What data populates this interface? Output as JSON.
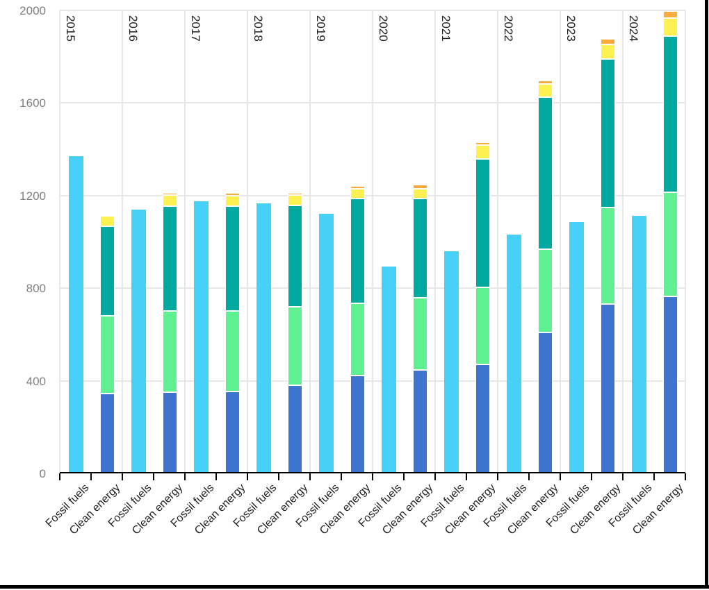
{
  "chart_data": {
    "type": "bar",
    "subtype": "grouped-and-stacked-column",
    "title": "",
    "years": [
      "2015",
      "2016",
      "2017",
      "2018",
      "2019",
      "2020",
      "2021",
      "2022",
      "2023",
      "2024"
    ],
    "group_bar_labels": [
      "Fossil fuels",
      "Clean energy"
    ],
    "y_axis": {
      "min": 0,
      "max": 2000,
      "tick_values": [
        0,
        400,
        800,
        1200,
        1600,
        2000
      ],
      "tick_labels": [
        "0",
        "400",
        "800",
        "1200",
        "1600",
        "2000"
      ]
    },
    "series": [
      {
        "name": "fossil-fuels-total",
        "bar": "Fossil fuels",
        "stack": false,
        "color": "#47D1F9",
        "values": [
          1370,
          1138,
          1175,
          1166,
          1122,
          895,
          961,
          1031,
          1086,
          1113
        ]
      },
      {
        "name": "clean-energy-segment-blue",
        "bar": "Clean energy",
        "stack": true,
        "color": "#3D74D0",
        "values": [
          345,
          351,
          354,
          381,
          424,
          447,
          472,
          609,
          732,
          766
        ]
      },
      {
        "name": "clean-energy-segment-light-green",
        "bar": "Clean energy",
        "stack": true,
        "color": "#5FF092",
        "values": [
          336,
          351,
          348,
          340,
          311,
          312,
          332,
          360,
          417,
          449
        ]
      },
      {
        "name": "clean-energy-segment-teal",
        "bar": "Clean energy",
        "stack": true,
        "color": "#00A9A0",
        "values": [
          387,
          453,
          452,
          437,
          453,
          429,
          554,
          656,
          640,
          673
        ]
      },
      {
        "name": "clean-energy-segment-yellow",
        "bar": "Clean energy",
        "stack": true,
        "color": "#FCF151",
        "values": [
          45,
          47,
          46,
          43,
          42,
          42,
          61,
          57,
          63,
          80
        ]
      },
      {
        "name": "clean-energy-segment-orange",
        "bar": "Clean energy",
        "stack": true,
        "color": "#FAAB3C",
        "values": [
          0,
          10,
          11,
          11,
          12,
          18,
          10,
          15,
          24,
          30
        ]
      }
    ],
    "legend_position": "none",
    "grid": {
      "horizontal": true,
      "vertical": true,
      "color": "#E7E7E7"
    },
    "colors": {
      "axis_line": "#000000",
      "y_tick_label": "#7F7F7F",
      "x_tick_label": "#1F1F1F",
      "year_label": "#1F1F1F",
      "frame_border": "#000000",
      "background": "#FFFFFF"
    }
  }
}
